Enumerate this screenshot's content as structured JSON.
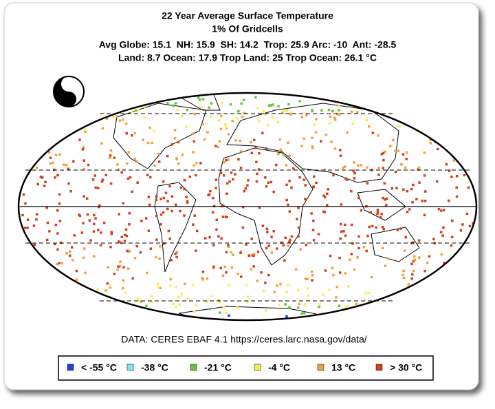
{
  "header": {
    "title": "22 Year Average Surface Temperature",
    "subtitle": "1% Of Gridcells",
    "stats_line_1": "Avg Globe: 15.1  NH: 15.9  SH: 14.2  Trop: 25.9 Arc: -10  Ant: -28.5",
    "stats_line_2": "Land: 8.7 Ocean: 17.9 Trop Land: 25 Trop Ocean: 26.1 °C"
  },
  "source": "DATA: CERES EBAF 4.1 https://ceres.larc.nasa.gov/data/",
  "legend": {
    "items": [
      {
        "label": "< -55 °C",
        "color": "#1f3fe0"
      },
      {
        "label": "-38 °C",
        "color": "#7ee8f0"
      },
      {
        "label": "-21 °C",
        "color": "#6cc040"
      },
      {
        "label": "-4 °C",
        "color": "#f5ee50"
      },
      {
        "label": "13 °C",
        "color": "#f0a040"
      },
      {
        "label": "> 30 °C",
        "color": "#d04020"
      }
    ]
  }
}
